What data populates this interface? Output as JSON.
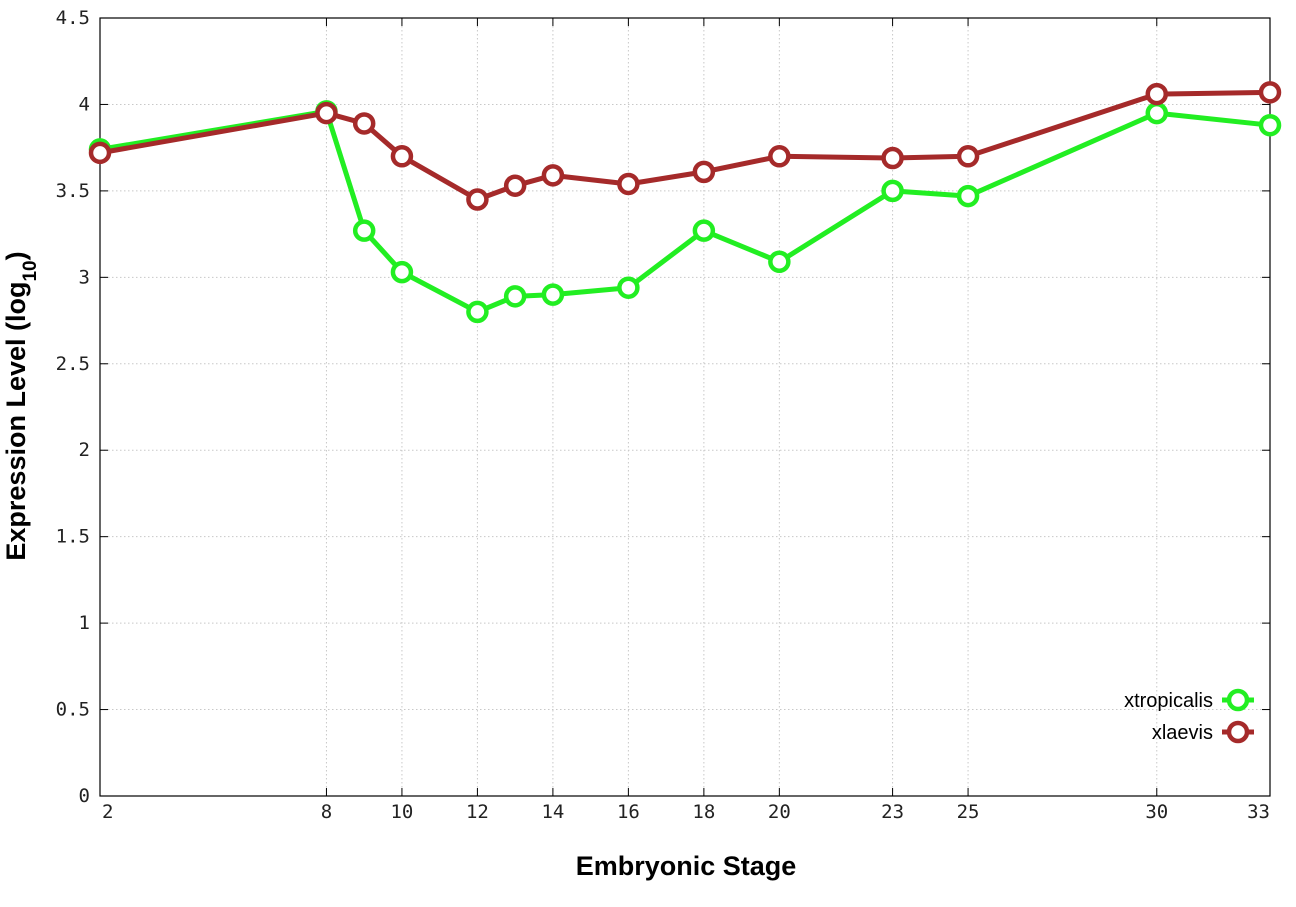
{
  "chart_data": {
    "type": "line",
    "xlabel": "Embryonic Stage",
    "ylabel_main": "Expression Level (log",
    "ylabel_sub": "10",
    "ylabel_close": ")",
    "xlim": [
      2,
      33
    ],
    "ylim": [
      0,
      4.5
    ],
    "xticks": [
      "2",
      "8",
      "10",
      "12",
      "14",
      "16",
      "18",
      "20",
      "23",
      "25",
      "30",
      "33"
    ],
    "yticks": [
      "0",
      "0.5",
      "1",
      "1.5",
      "2",
      "2.5",
      "3",
      "3.5",
      "4",
      "4.5"
    ],
    "grid": true,
    "legend_position": "bottom-right",
    "x": [
      2,
      8,
      9,
      10,
      12,
      13,
      14,
      16,
      18,
      20,
      23,
      25,
      30,
      33
    ],
    "series": [
      {
        "name": "xtropicalis",
        "color": "#22ee22",
        "values": [
          3.74,
          3.96,
          3.27,
          3.03,
          2.8,
          2.89,
          2.9,
          2.94,
          3.27,
          3.09,
          3.5,
          3.47,
          3.95,
          3.88
        ]
      },
      {
        "name": "xlaevis",
        "color": "#a52a2a",
        "values": [
          3.72,
          3.95,
          3.89,
          3.7,
          3.45,
          3.53,
          3.59,
          3.54,
          3.61,
          3.7,
          3.69,
          3.7,
          4.06,
          4.07
        ]
      }
    ]
  }
}
